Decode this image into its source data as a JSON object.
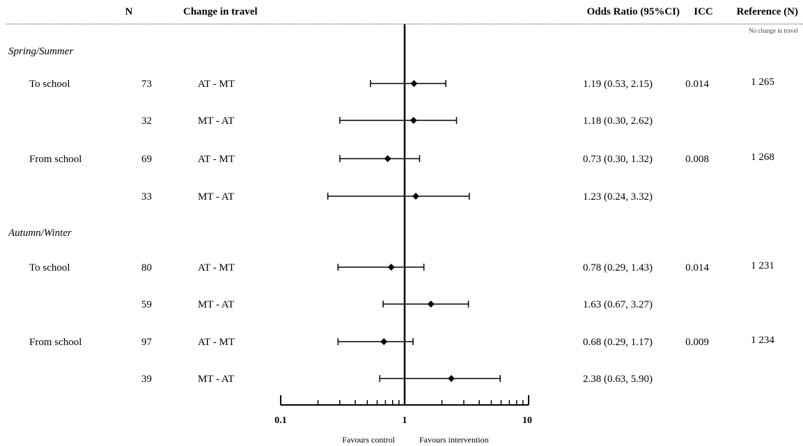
{
  "header": {
    "n": "N",
    "change": "Change in travel",
    "or": "Odds Ratio (95%CI)",
    "icc": "ICC",
    "ref": "Reference (N)",
    "ref_sub": "No change in travel"
  },
  "sections": [
    "Spring/Summer",
    "Autumn/Winter"
  ],
  "axis_notes": {
    "left": "Favours control",
    "right": "Favours intervention"
  },
  "chart_data": {
    "type": "forest",
    "x_scale": "log",
    "xlim": [
      0.1,
      10
    ],
    "reference_line": 1,
    "x_tick_labels": [
      "0.1",
      "1",
      "10"
    ],
    "rows": [
      {
        "section": "Spring/Summer",
        "group": "To school",
        "n": "73",
        "change": "AT - MT",
        "or": 1.19,
        "lo": 0.53,
        "hi": 2.15,
        "or_text": "1.19 (0.53, 2.15)",
        "icc": "0.014",
        "ref": "1 265"
      },
      {
        "section": "Spring/Summer",
        "group": "",
        "n": "32",
        "change": "MT - AT",
        "or": 1.18,
        "lo": 0.3,
        "hi": 2.62,
        "or_text": "1.18 (0.30, 2.62)",
        "icc": "",
        "ref": ""
      },
      {
        "section": "Spring/Summer",
        "group": "From school",
        "n": "69",
        "change": "AT - MT",
        "or": 0.73,
        "lo": 0.3,
        "hi": 1.32,
        "or_text": "0.73 (0.30, 1.32)",
        "icc": "0.008",
        "ref": "1 268"
      },
      {
        "section": "Spring/Summer",
        "group": "",
        "n": "33",
        "change": "MT - AT",
        "or": 1.23,
        "lo": 0.24,
        "hi": 3.32,
        "or_text": "1.23 (0.24, 3.32)",
        "icc": "",
        "ref": ""
      },
      {
        "section": "Autumn/Winter",
        "group": "To school",
        "n": "80",
        "change": "AT - MT",
        "or": 0.78,
        "lo": 0.29,
        "hi": 1.43,
        "or_text": "0.78 (0.29, 1.43)",
        "icc": "0.014",
        "ref": "1 231"
      },
      {
        "section": "Autumn/Winter",
        "group": "",
        "n": "59",
        "change": "MT - AT",
        "or": 1.63,
        "lo": 0.67,
        "hi": 3.27,
        "or_text": "1.63 (0.67, 3.27)",
        "icc": "",
        "ref": ""
      },
      {
        "section": "Autumn/Winter",
        "group": "From school",
        "n": "97",
        "change": "AT - MT",
        "or": 0.68,
        "lo": 0.29,
        "hi": 1.17,
        "or_text": "0.68 (0.29, 1.17)",
        "icc": "0.009",
        "ref": "1 234"
      },
      {
        "section": "Autumn/Winter",
        "group": "",
        "n": "39",
        "change": "MT - AT",
        "or": 2.38,
        "lo": 0.63,
        "hi": 5.9,
        "or_text": "2.38 (0.63, 5.90)",
        "icc": "",
        "ref": ""
      }
    ]
  }
}
